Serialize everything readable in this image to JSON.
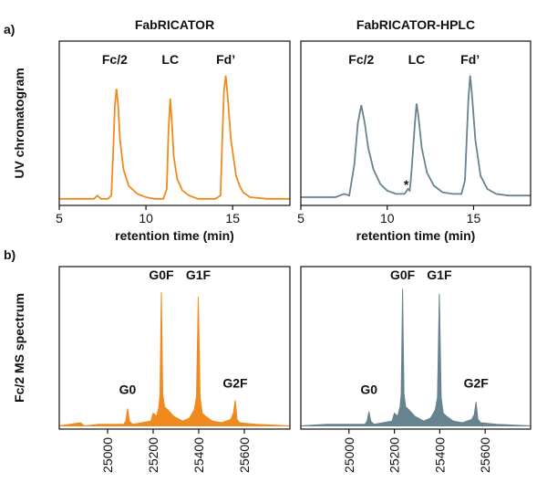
{
  "chart_data": [
    {
      "type": "line",
      "panel_label": "a)",
      "title": "FabRICATOR",
      "xlabel": "retention time (min)",
      "ylabel": "UV chromatogram",
      "xlim": [
        5,
        18.3
      ],
      "ylim": [
        0,
        100
      ],
      "xticks": [
        5,
        10,
        15
      ],
      "series": [
        {
          "color": "#f08a1e",
          "x": [
            5,
            6,
            7,
            7.2,
            7.4,
            7.8,
            8.0,
            8.1,
            8.2,
            8.3,
            8.4,
            8.5,
            8.7,
            9.0,
            9.5,
            10,
            10.5,
            11.0,
            11.2,
            11.3,
            11.4,
            11.5,
            11.6,
            11.8,
            12.1,
            12.5,
            13,
            13.5,
            14,
            14.3,
            14.4,
            14.5,
            14.6,
            14.7,
            14.9,
            15.2,
            15.4,
            15.6,
            16,
            17,
            18.3
          ],
          "values": [
            4,
            4,
            4,
            6,
            4,
            4,
            6,
            30,
            60,
            71,
            60,
            40,
            22,
            12,
            7,
            5,
            4,
            4,
            10,
            45,
            65,
            50,
            30,
            16,
            9,
            6,
            4,
            4,
            4,
            6,
            40,
            70,
            79,
            68,
            40,
            18,
            12,
            8,
            5,
            4,
            4
          ]
        }
      ],
      "annotations": [
        {
          "text": "Fc/2",
          "x": 8.2,
          "y": 86
        },
        {
          "text": "LC",
          "x": 11.4,
          "y": 86
        },
        {
          "text": "Fd’",
          "x": 14.6,
          "y": 86
        }
      ]
    },
    {
      "type": "line",
      "title": "FabRICATOR-HPLC",
      "xlabel": "retention time (min)",
      "xlim": [
        5,
        18.3
      ],
      "ylim": [
        0,
        100
      ],
      "xticks": [
        5,
        10,
        15
      ],
      "series": [
        {
          "color": "#66838f",
          "x": [
            5,
            6,
            7,
            7.5,
            7.8,
            8.1,
            8.3,
            8.5,
            8.7,
            8.9,
            9.2,
            9.6,
            10,
            10.5,
            11.0,
            11.2,
            11.3,
            11.4,
            11.6,
            11.7,
            11.8,
            12.0,
            12.3,
            12.7,
            13.2,
            13.8,
            14.3,
            14.5,
            14.6,
            14.7,
            14.8,
            14.9,
            15.1,
            15.4,
            15.8,
            16.3,
            17,
            18.3
          ],
          "values": [
            5,
            5,
            5,
            7,
            6,
            25,
            50,
            61,
            50,
            35,
            22,
            13,
            9,
            7,
            7,
            10,
            9,
            20,
            50,
            62,
            55,
            35,
            20,
            12,
            8,
            7,
            7,
            15,
            40,
            65,
            79,
            68,
            40,
            18,
            10,
            7,
            6,
            6
          ]
        }
      ],
      "annotations": [
        {
          "text": "Fc/2",
          "x": 8.5,
          "y": 86
        },
        {
          "text": "LC",
          "x": 11.7,
          "y": 86
        },
        {
          "text": "Fd’",
          "x": 14.8,
          "y": 86
        },
        {
          "text": "*",
          "x": 11.1,
          "y": 10
        }
      ]
    },
    {
      "type": "area",
      "panel_label": "b)",
      "ylabel": "Fc/2 MS spectrum",
      "xlim": [
        24788,
        25800
      ],
      "ylim": [
        -2,
        100
      ],
      "xticks": [
        25000,
        25200,
        25400,
        25600
      ],
      "series": [
        {
          "color": "#f08a1e",
          "x": [
            24788,
            24880,
            24900,
            24960,
            25070,
            25080,
            25088,
            25096,
            25110,
            25150,
            25190,
            25200,
            25215,
            25225,
            25230,
            25236,
            25242,
            25250,
            25265,
            25290,
            25330,
            25360,
            25380,
            25390,
            25398,
            25406,
            25415,
            25430,
            25460,
            25500,
            25540,
            25552,
            25560,
            25568,
            25580,
            25650,
            25800
          ],
          "values": [
            0,
            2,
            0,
            1,
            1,
            3,
            11,
            3,
            1,
            2,
            3,
            8,
            6,
            12,
            20,
            84,
            20,
            12,
            10,
            6,
            3,
            5,
            10,
            18,
            81,
            18,
            8,
            6,
            3,
            2,
            4,
            8,
            16,
            4,
            2,
            1,
            0
          ]
        }
      ],
      "annotations": [
        {
          "text": "G0",
          "x": 25088,
          "y": 20
        },
        {
          "text": "G0F",
          "x": 25236,
          "y": 92
        },
        {
          "text": "G1F",
          "x": 25398,
          "y": 92
        },
        {
          "text": "G2F",
          "x": 25560,
          "y": 24
        }
      ]
    },
    {
      "type": "area",
      "xlim": [
        24788,
        25800
      ],
      "ylim": [
        -2,
        100
      ],
      "xticks": [
        25000,
        25200,
        25400,
        25600
      ],
      "series": [
        {
          "color": "#66838f",
          "x": [
            24788,
            24900,
            24960,
            25070,
            25080,
            25088,
            25096,
            25110,
            25150,
            25190,
            25200,
            25215,
            25225,
            25230,
            25236,
            25242,
            25250,
            25265,
            25290,
            25330,
            25360,
            25380,
            25390,
            25398,
            25406,
            25415,
            25430,
            25460,
            25500,
            25540,
            25552,
            25560,
            25568,
            25580,
            25650,
            25800
          ],
          "values": [
            0,
            1,
            1,
            1,
            3,
            9,
            3,
            1,
            2,
            3,
            8,
            6,
            12,
            20,
            86,
            20,
            12,
            10,
            6,
            3,
            5,
            10,
            18,
            83,
            18,
            8,
            6,
            3,
            2,
            4,
            7,
            15,
            4,
            2,
            1,
            0
          ]
        }
      ],
      "annotations": [
        {
          "text": "G0",
          "x": 25088,
          "y": 20
        },
        {
          "text": "G0F",
          "x": 25236,
          "y": 92
        },
        {
          "text": "G1F",
          "x": 25398,
          "y": 92
        },
        {
          "text": "G2F",
          "x": 25560,
          "y": 24
        }
      ]
    }
  ]
}
